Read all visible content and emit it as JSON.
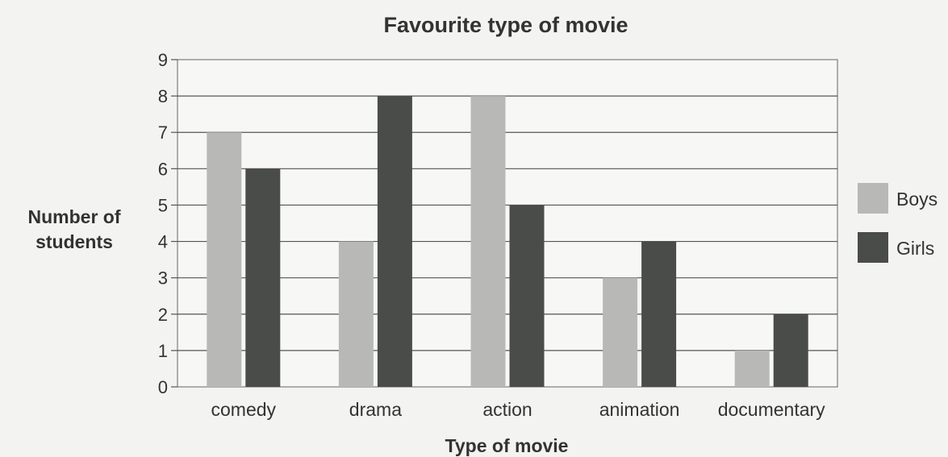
{
  "chart_data": {
    "type": "bar",
    "title": "Favourite type of movie",
    "xlabel": "Type of movie",
    "ylabel_lines": [
      "Number of",
      "students"
    ],
    "categories": [
      "comedy",
      "drama",
      "action",
      "animation",
      "documentary"
    ],
    "series": [
      {
        "name": "Boys",
        "values": [
          7,
          4,
          8,
          3,
          1
        ],
        "color": "#b8b9b6"
      },
      {
        "name": "Girls",
        "values": [
          6,
          8,
          5,
          4,
          2
        ],
        "color": "#4a4c4a"
      }
    ],
    "ylim": [
      0,
      9
    ],
    "yticks": [
      "0",
      "1",
      "2",
      "3",
      "4",
      "5",
      "6",
      "7",
      "8",
      "9"
    ],
    "grid": true,
    "legend_position": "right"
  }
}
